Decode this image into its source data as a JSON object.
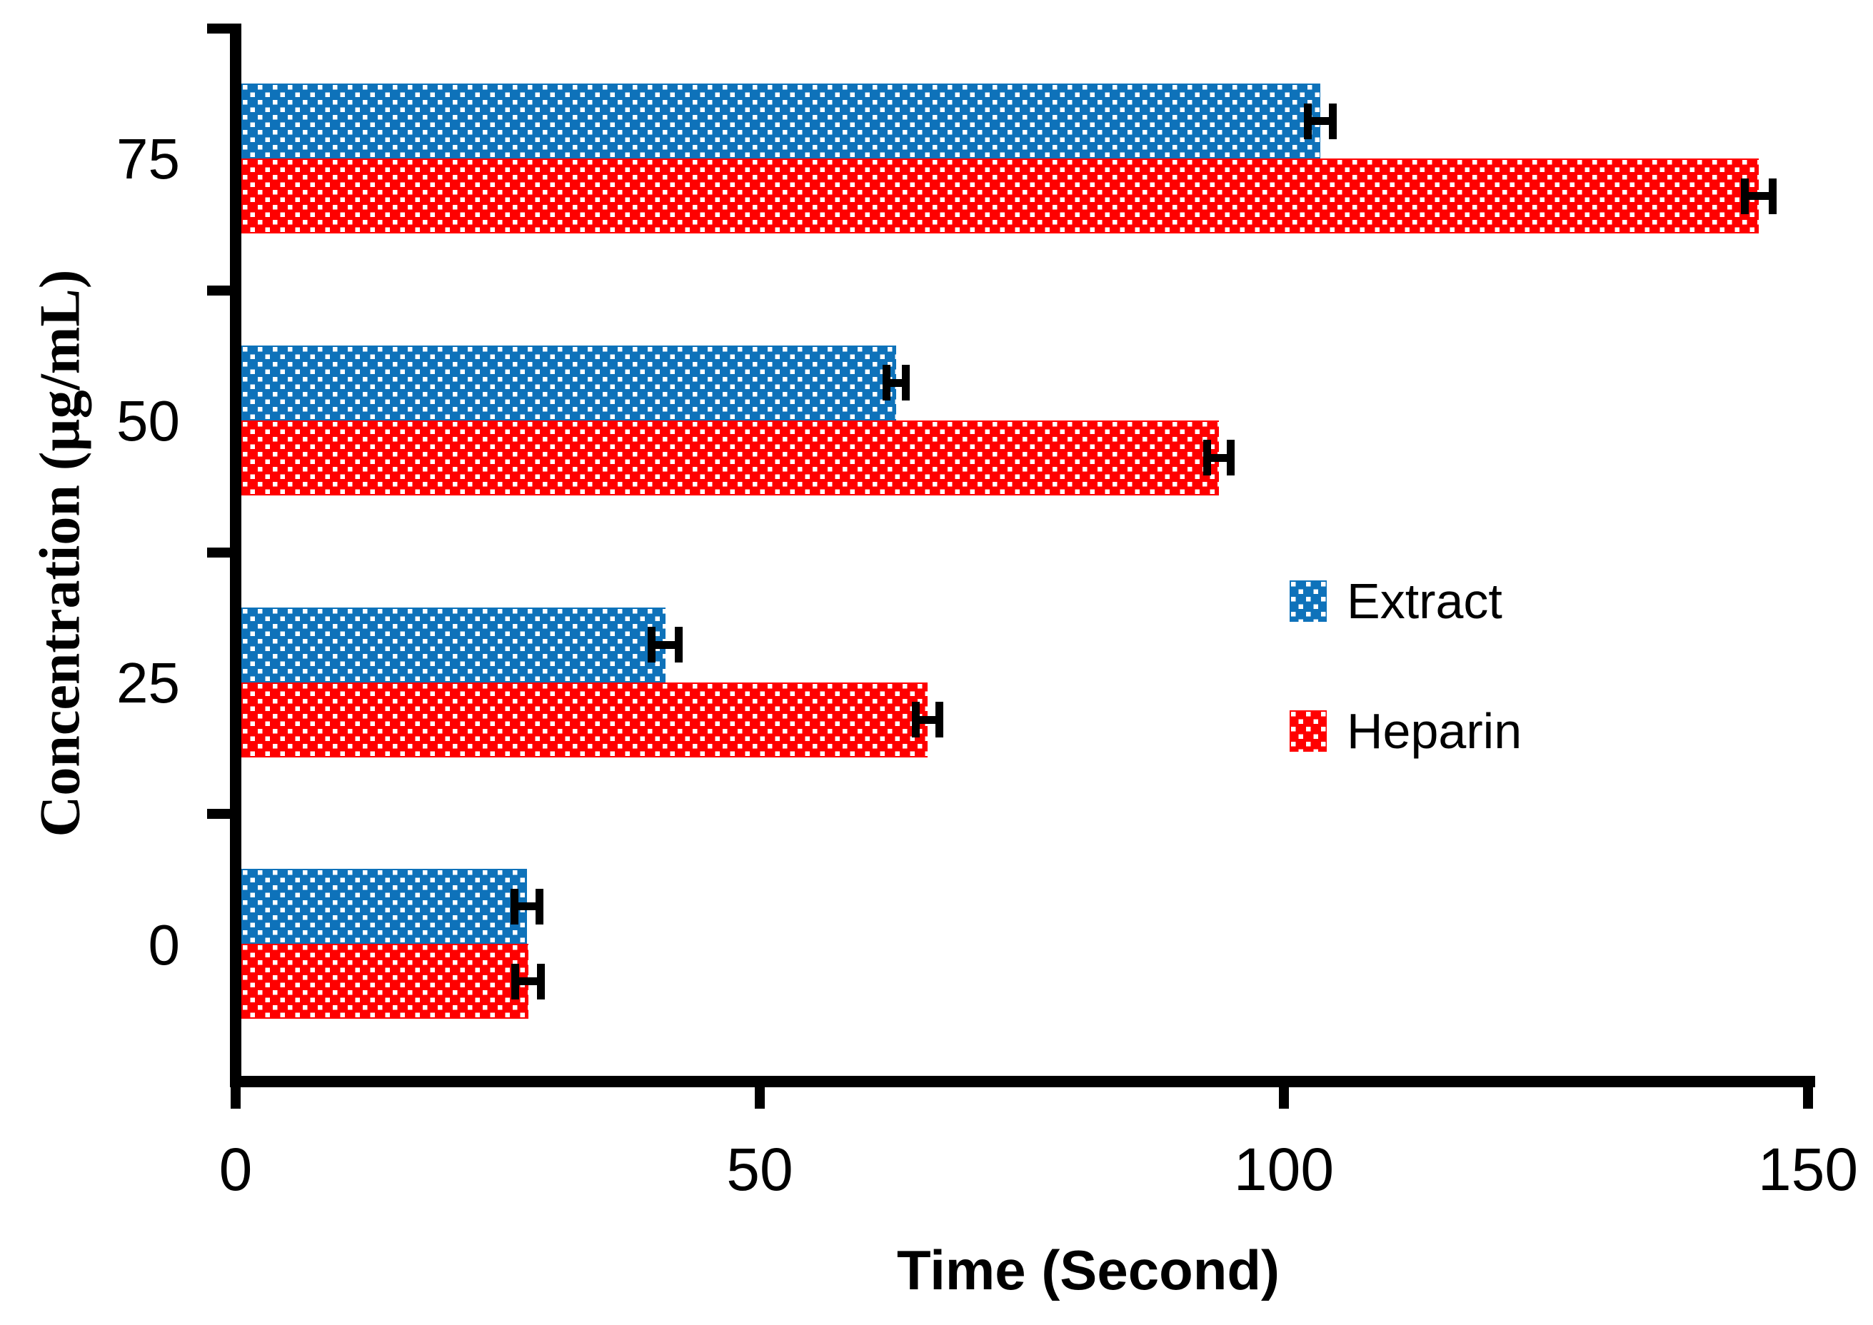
{
  "chart_data": {
    "type": "bar",
    "orientation": "horizontal",
    "title": "",
    "xlabel": "Time (Second)",
    "ylabel": "Concentration (µg/mL)",
    "categories": [
      "75",
      "50",
      "25",
      "0"
    ],
    "x_tick_labels": [
      "0",
      "50",
      "100",
      "150"
    ],
    "x_tick_values": [
      0,
      50,
      100,
      150
    ],
    "xlim": [
      0,
      150
    ],
    "grid": false,
    "error_bars": true,
    "legend_position": "center-right",
    "series": [
      {
        "name": "Extract",
        "color": "#0E72BA",
        "pattern": "white-dot-grid",
        "values": [
          103.5,
          63.0,
          41.0,
          27.8
        ],
        "errors": [
          1.2,
          0.9,
          1.3,
          1.2
        ]
      },
      {
        "name": "Heparin",
        "color": "#FF0000",
        "pattern": "white-dot-grid",
        "values": [
          145.3,
          93.8,
          66.0,
          27.9
        ],
        "errors": [
          1.3,
          1.1,
          1.1,
          1.2
        ]
      }
    ]
  },
  "colors": {
    "axis": "#000000",
    "text": "#000000",
    "background": "#FFFFFF"
  }
}
